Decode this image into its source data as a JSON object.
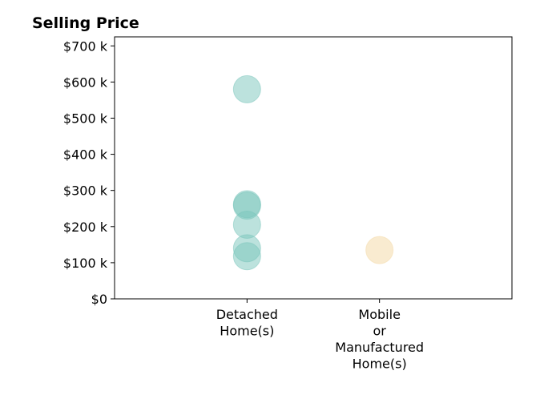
{
  "chart_data": {
    "type": "scatter",
    "title": "Selling Price",
    "xlabel": "",
    "ylabel": "",
    "categories": [
      {
        "lines": [
          "Detached",
          "Home(s)"
        ]
      },
      {
        "lines": [
          "Mobile",
          "or",
          "Manufactured",
          "Home(s)"
        ]
      }
    ],
    "x_range": [
      -1,
      2
    ],
    "ylim": [
      0,
      725000
    ],
    "y_ticks": [
      {
        "value": 0,
        "label": "$0"
      },
      {
        "value": 100000,
        "label": "$100 k"
      },
      {
        "value": 200000,
        "label": "$200 k"
      },
      {
        "value": 300000,
        "label": "$300 k"
      },
      {
        "value": 400000,
        "label": "$400 k"
      },
      {
        "value": 500000,
        "label": "$500 k"
      },
      {
        "value": 600000,
        "label": "$600 k"
      },
      {
        "value": 700000,
        "label": "$700 k"
      }
    ],
    "series": [
      {
        "category_index": 0,
        "color": "#7ac5bb",
        "opacity": 0.5,
        "values": [
          580000,
          262000,
          258000,
          205000,
          140000,
          118000
        ]
      },
      {
        "category_index": 1,
        "color": "#f5deb0",
        "opacity": 0.6,
        "values": [
          135000
        ]
      }
    ],
    "grid": false
  }
}
